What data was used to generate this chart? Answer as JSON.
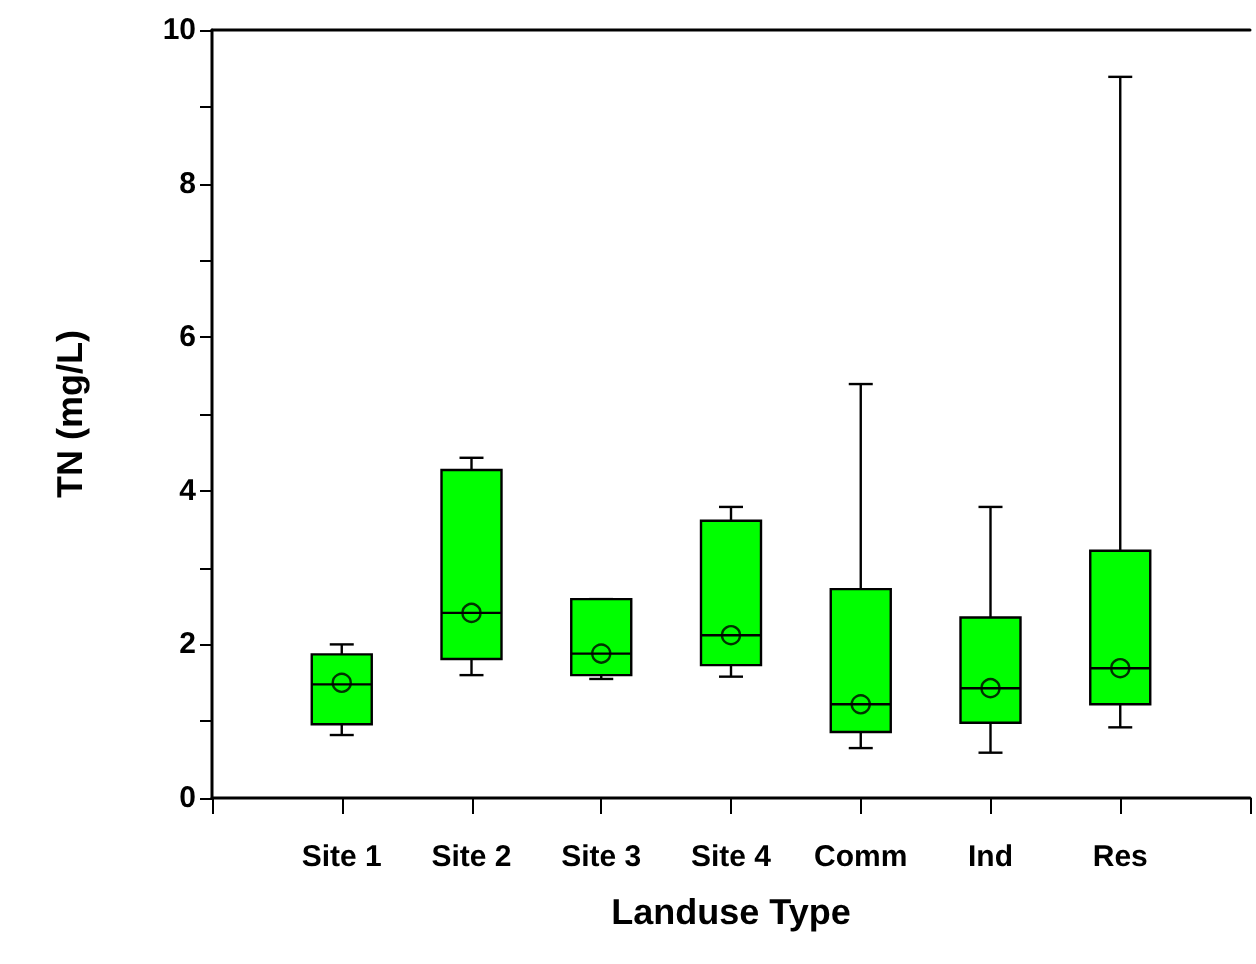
{
  "chart_data": {
    "type": "box",
    "xlabel": "Landuse Type",
    "ylabel": "TN (mg/L)",
    "categories": [
      null,
      "Site 1",
      "Site 2",
      "Site 3",
      "Site 4",
      "Comm",
      "Ind",
      "Res",
      null
    ],
    "color": "#00ff00",
    "boxes": [
      null,
      {
        "low": 0.82,
        "q1": 0.96,
        "median": 1.48,
        "q3": 1.87,
        "high": 2.0,
        "mean": 1.5
      },
      {
        "low": 1.6,
        "q1": 1.81,
        "median": 2.41,
        "q3": 4.27,
        "high": 4.43,
        "mean": 2.41
      },
      {
        "low": 1.55,
        "q1": 1.6,
        "median": 1.88,
        "q3": 2.59,
        "high": 2.59,
        "mean": 1.88
      },
      {
        "low": 1.58,
        "q1": 1.73,
        "median": 2.12,
        "q3": 3.61,
        "high": 3.79,
        "mean": 2.12
      },
      {
        "low": 0.65,
        "q1": 0.86,
        "median": 1.22,
        "q3": 2.72,
        "high": 5.39,
        "mean": 1.22
      },
      {
        "low": 0.59,
        "q1": 0.98,
        "median": 1.43,
        "q3": 2.35,
        "high": 3.79,
        "mean": 1.43
      },
      {
        "low": 0.92,
        "q1": 1.22,
        "median": 1.69,
        "q3": 3.22,
        "high": 9.39,
        "mean": 1.69
      },
      null
    ],
    "ylim": [
      0,
      10
    ],
    "yticks": [
      0,
      {
        "value": 1,
        "label": null
      },
      2,
      {
        "value": 3,
        "label": null
      },
      4,
      {
        "value": 5,
        "label": null
      },
      6,
      {
        "value": 7,
        "label": null
      },
      8,
      {
        "value": 9,
        "label": null
      },
      10
    ],
    "grid": false
  }
}
